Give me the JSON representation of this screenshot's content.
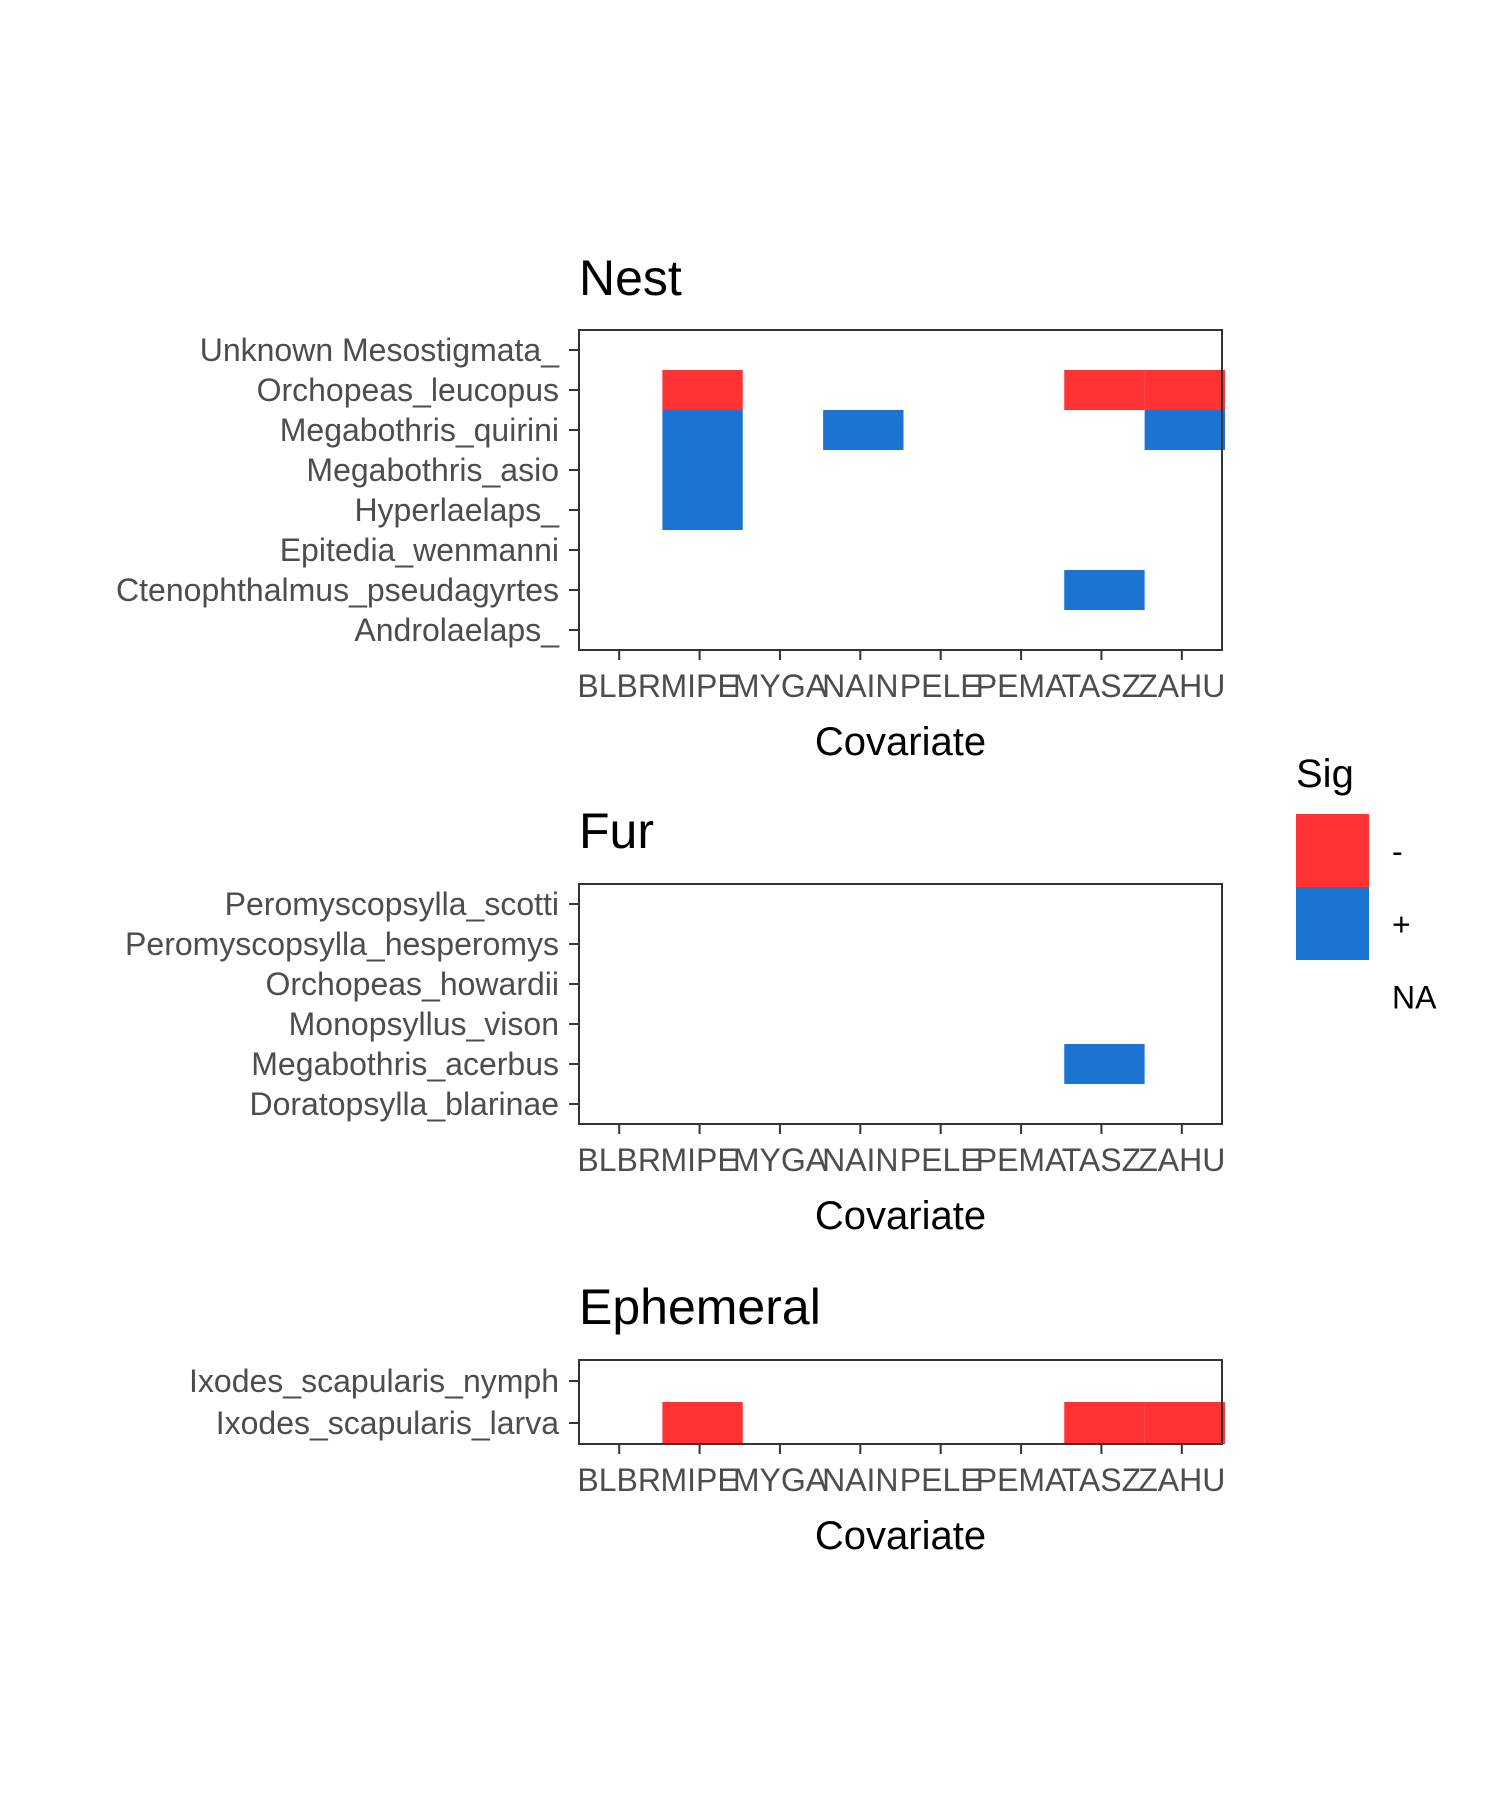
{
  "chart_data": {
    "type": "heatmap",
    "x_categories": [
      "BLBR",
      "MIPE",
      "MYGA",
      "NAIN",
      "PELE",
      "PEMA",
      "TASZ",
      "ZAHU"
    ],
    "xlabel": "Covariate",
    "legend": {
      "title": "Sig",
      "placement": "right",
      "entries": [
        {
          "label": "-",
          "color": "#FF3333"
        },
        {
          "label": "+",
          "color": "#1B74D1"
        },
        {
          "label": "NA",
          "color": "#FFFFFF"
        }
      ]
    },
    "panels": [
      {
        "title": "Nest",
        "y_categories": [
          "Androlaelaps_",
          "Ctenophthalmus_pseudagyrtes",
          "Epitedia_wenmanni",
          "Hyperlaelaps_",
          "Megabothris_asio",
          "Megabothris_quirini",
          "Orchopeas_leucopus",
          "Unknown Mesostigmata_"
        ],
        "cells": [
          {
            "x": "MIPE",
            "y": "Orchopeas_leucopus",
            "sig": "-"
          },
          {
            "x": "TASZ",
            "y": "Orchopeas_leucopus",
            "sig": "-"
          },
          {
            "x": "ZAHU",
            "y": "Orchopeas_leucopus",
            "sig": "-"
          },
          {
            "x": "MIPE",
            "y": "Megabothris_quirini",
            "sig": "+"
          },
          {
            "x": "NAIN",
            "y": "Megabothris_quirini",
            "sig": "+"
          },
          {
            "x": "ZAHU",
            "y": "Megabothris_quirini",
            "sig": "+"
          },
          {
            "x": "MIPE",
            "y": "Megabothris_asio",
            "sig": "+"
          },
          {
            "x": "MIPE",
            "y": "Hyperlaelaps_",
            "sig": "+"
          },
          {
            "x": "TASZ",
            "y": "Ctenophthalmus_pseudagyrtes",
            "sig": "+"
          }
        ]
      },
      {
        "title": "Fur",
        "y_categories": [
          "Doratopsylla_blarinae",
          "Megabothris_acerbus",
          "Monopsyllus_vison",
          "Orchopeas_howardii",
          "Peromyscopsylla_hesperomys",
          "Peromyscopsylla_scotti"
        ],
        "cells": [
          {
            "x": "TASZ",
            "y": "Megabothris_acerbus",
            "sig": "+"
          }
        ]
      },
      {
        "title": "Ephemeral",
        "y_categories": [
          "Ixodes_scapularis_larva",
          "Ixodes_scapularis_nymph"
        ],
        "cells": [
          {
            "x": "MIPE",
            "y": "Ixodes_scapularis_larva",
            "sig": "-"
          },
          {
            "x": "TASZ",
            "y": "Ixodes_scapularis_larva",
            "sig": "-"
          },
          {
            "x": "ZAHU",
            "y": "Ixodes_scapularis_larva",
            "sig": "-"
          }
        ]
      }
    ]
  }
}
